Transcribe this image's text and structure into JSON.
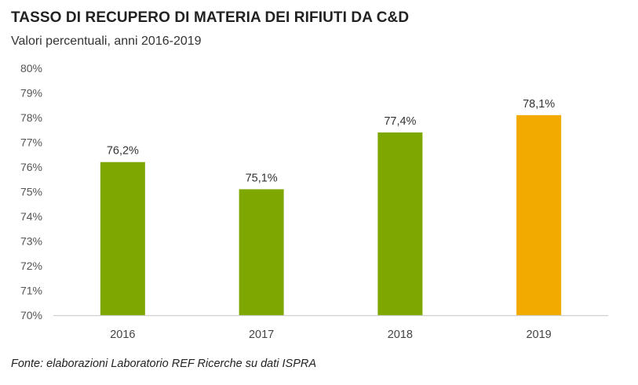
{
  "chart_data": {
    "type": "bar",
    "title": "TASSO DI RECUPERO DI MATERIA DEI RIFIUTI DA C&D",
    "subtitle": "Valori percentuali, anni 2016-2019",
    "categories": [
      "2016",
      "2017",
      "2018",
      "2019"
    ],
    "values": [
      76.2,
      75.1,
      77.4,
      78.1
    ],
    "data_labels": [
      "76,2%",
      "75,1%",
      "77,4%",
      "78,1%"
    ],
    "colors": [
      "#7ea800",
      "#7ea800",
      "#7ea800",
      "#f2a900"
    ],
    "ylim": [
      70,
      80
    ],
    "yticks": [
      70,
      71,
      72,
      73,
      74,
      75,
      76,
      77,
      78,
      79,
      80
    ],
    "ytick_labels": [
      "70%",
      "71%",
      "72%",
      "73%",
      "74%",
      "75%",
      "76%",
      "77%",
      "78%",
      "79%",
      "80%"
    ],
    "xlabel": "",
    "ylabel": "",
    "grid": false,
    "source": "Fonte: elaborazioni Laboratorio REF Ricerche su dati ISPRA"
  }
}
